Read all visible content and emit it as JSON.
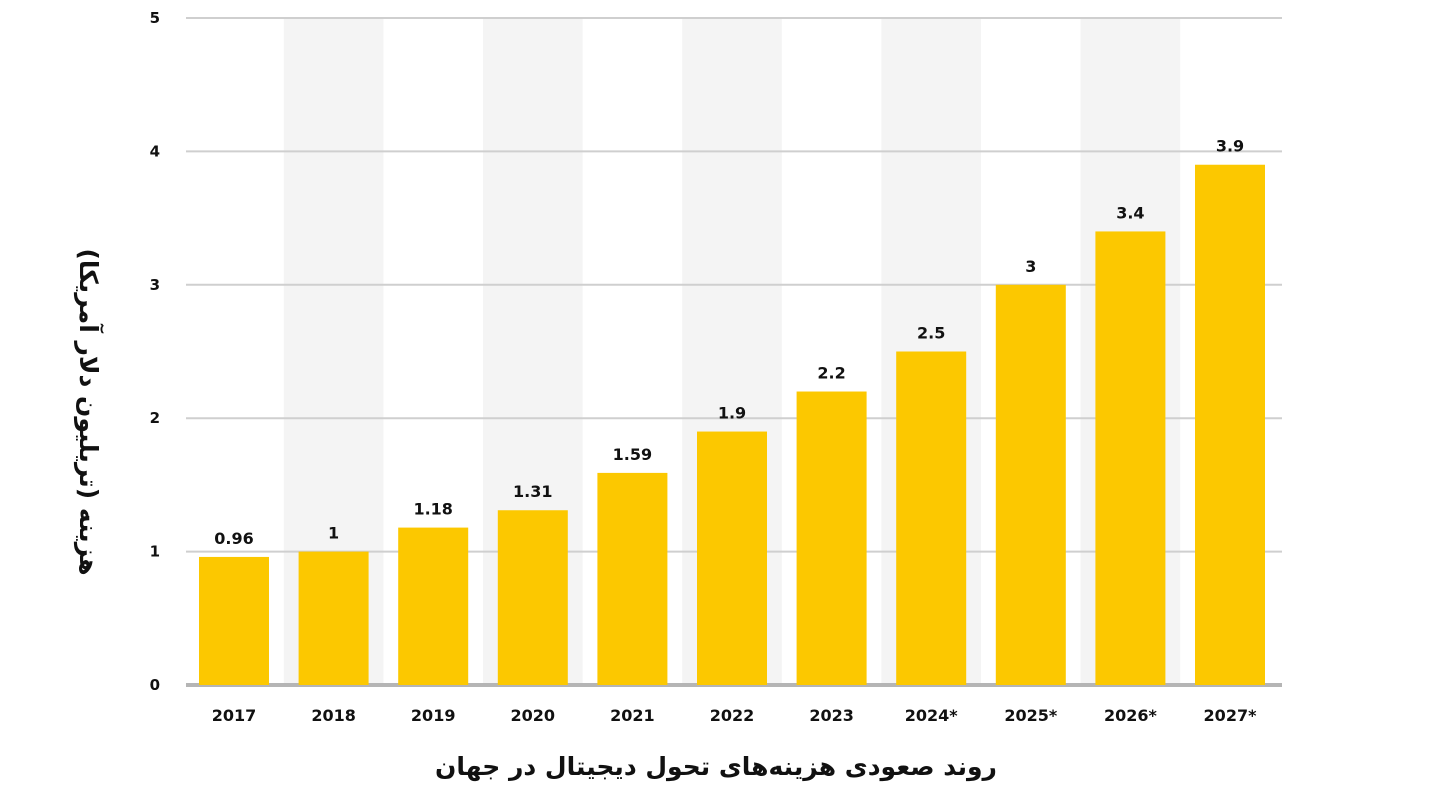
{
  "chart_data": {
    "type": "bar",
    "categories": [
      "2017",
      "2018",
      "2019",
      "2020",
      "2021",
      "2022",
      "2023",
      "2024*",
      "2025*",
      "2026*",
      "2027*"
    ],
    "values": [
      0.96,
      1,
      1.18,
      1.31,
      1.59,
      1.9,
      2.2,
      2.5,
      3,
      3.4,
      3.9
    ],
    "value_labels": [
      "0.96",
      "1",
      "1.18",
      "1.31",
      "1.59",
      "1.9",
      "2.2",
      "2.5",
      "3",
      "3.4",
      "3.9"
    ],
    "xlabel": "روند صعودی هزینه‌های تحول دیجیتال در جهان",
    "ylabel": "هزینه (تریلیون دلار آمریکا)",
    "ylim": [
      0,
      5
    ],
    "yticks": [
      "0",
      "1",
      "2",
      "3",
      "4",
      "5"
    ],
    "grid": true,
    "legend": "none",
    "colors": {
      "bar": "#FCC800",
      "band": "#F4F4F4",
      "grid": "#CFCFCF",
      "axis": "#B5B5B5"
    }
  }
}
